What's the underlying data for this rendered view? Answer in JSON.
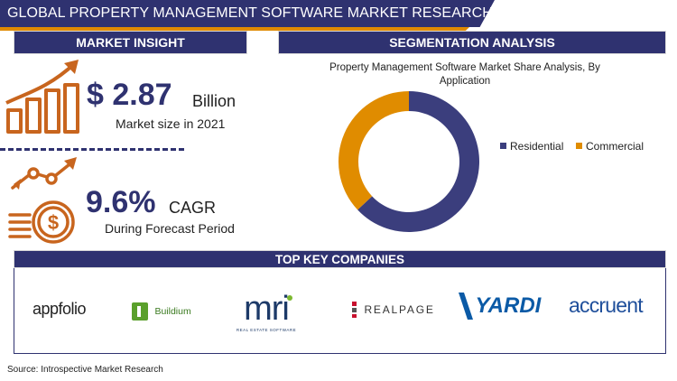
{
  "header": {
    "title": "GLOBAL PROPERTY MANAGEMENT SOFTWARE MARKET RESEARCH REPORT"
  },
  "market_insight": {
    "heading": "MARKET INSIGHT",
    "market_size": {
      "value": "$ 2.87",
      "unit": "Billion",
      "caption": "Market size in 2021"
    },
    "cagr": {
      "value": "9.6%",
      "unit": "CAGR",
      "caption": "During Forecast Period"
    }
  },
  "segmentation": {
    "heading": "SEGMENTATION ANALYSIS",
    "chart_title_line1": "Property Management Software Market Share Analysis, By",
    "chart_title_line2": "Application"
  },
  "chart_data": {
    "type": "pie",
    "donut": true,
    "title": "Property Management Software Market Share Analysis, By Application",
    "categories": [
      "Residential",
      "Commercial"
    ],
    "values": [
      63,
      37
    ],
    "colors": [
      "#3b3e7d",
      "#e08c00"
    ],
    "legend_position": "right"
  },
  "top_companies": {
    "heading": "TOP KEY COMPANIES",
    "logos": [
      {
        "name": "appfolio",
        "text": "appfolio"
      },
      {
        "name": "buildium",
        "text": "Buildium"
      },
      {
        "name": "mri",
        "text": "mri",
        "tagline": "REAL ESTATE SOFTWARE"
      },
      {
        "name": "realpage",
        "text": "REALPAGE"
      },
      {
        "name": "yardi",
        "text": "YARDI"
      },
      {
        "name": "accruent",
        "text": "accruent"
      }
    ]
  },
  "source": "Source: Introspective Market Research",
  "colors": {
    "navy": "#2f3270",
    "orange": "#e08a00",
    "icon_orange": "#c8651e"
  },
  "icons": [
    "bar-chart-growth-icon",
    "coins-growth-icon"
  ]
}
